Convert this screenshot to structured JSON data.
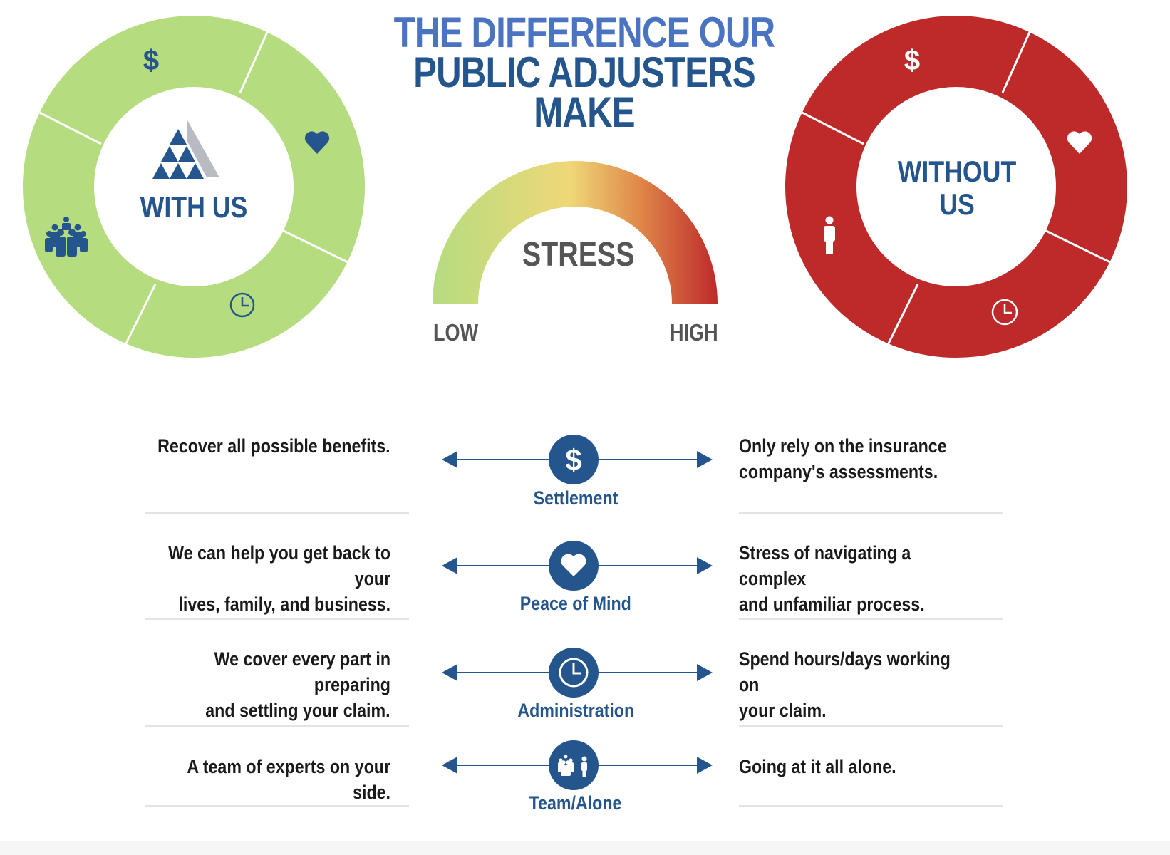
{
  "title": {
    "line1": "THE DIFFERENCE OUR",
    "line2": "PUBLIC ADJUSTERS MAKE"
  },
  "colors": {
    "green": "#b5dc7f",
    "red": "#be2a2a",
    "navy": "#24558d",
    "blue": "#4a74c2",
    "gray": "#555555"
  },
  "with_us": {
    "label": "WITH US",
    "segments": [
      "dollar-icon",
      "heart-icon",
      "clock-icon",
      "team-icon"
    ]
  },
  "without_us": {
    "label_line1": "WITHOUT",
    "label_line2": "US",
    "segments": [
      "dollar-icon",
      "heart-icon",
      "clock-icon",
      "person-icon"
    ]
  },
  "gauge": {
    "label": "STRESS",
    "low": "LOW",
    "high": "HIGH"
  },
  "rows": [
    {
      "label": "Settlement",
      "icon": "dollar-icon",
      "left": [
        "Recover all possible benefits."
      ],
      "right": [
        "Only rely on the insurance",
        "company's assessments."
      ]
    },
    {
      "label": "Peace of Mind",
      "icon": "heart-icon",
      "left": [
        "We can help you get back to your",
        "lives, family, and business."
      ],
      "right": [
        "Stress of navigating a complex",
        "and unfamiliar process."
      ]
    },
    {
      "label": "Administration",
      "icon": "clock-icon",
      "left": [
        "We cover every part in preparing",
        "and settling your claim."
      ],
      "right": [
        "Spend hours/days working on",
        "your claim."
      ]
    },
    {
      "label": "Team/Alone",
      "icon": "team-person-icon",
      "left": [
        "A team of experts on your side."
      ],
      "right": [
        "Going at it all alone."
      ]
    }
  ]
}
